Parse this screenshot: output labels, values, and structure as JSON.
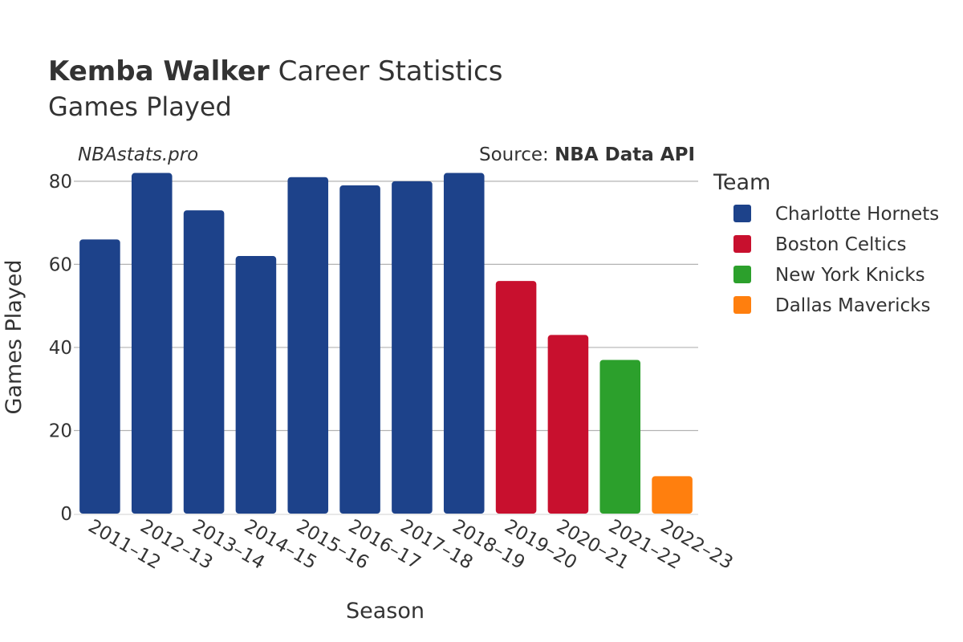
{
  "header": {
    "player_name": "Kemba Walker",
    "title_suffix": "Career Statistics",
    "subtitle": "Games Played"
  },
  "credit": {
    "site": "NBAstats.pro",
    "source_prefix": "Source: ",
    "source_name": "NBA Data API"
  },
  "chart_data": {
    "type": "bar",
    "title": "Kemba Walker Career Statistics",
    "subtitle": "Games Played",
    "xlabel": "Season",
    "ylabel": "Games Played",
    "ylim": [
      0,
      85
    ],
    "yticks": [
      0,
      20,
      40,
      60,
      80
    ],
    "grid": true,
    "legend_title": "Team",
    "legend_position": "right",
    "categories": [
      "2011–12",
      "2012–13",
      "2013–14",
      "2014–15",
      "2015–16",
      "2016–17",
      "2017–18",
      "2018–19",
      "2019–20",
      "2020–21",
      "2021–22",
      "2022–23"
    ],
    "values": [
      66,
      82,
      73,
      62,
      81,
      79,
      80,
      82,
      56,
      43,
      37,
      9
    ],
    "teams": [
      "Charlotte Hornets",
      "Charlotte Hornets",
      "Charlotte Hornets",
      "Charlotte Hornets",
      "Charlotte Hornets",
      "Charlotte Hornets",
      "Charlotte Hornets",
      "Charlotte Hornets",
      "Boston Celtics",
      "Boston Celtics",
      "New York Knicks",
      "Dallas Mavericks"
    ],
    "series": [
      {
        "name": "Charlotte Hornets",
        "color": "#1d428a"
      },
      {
        "name": "Boston Celtics",
        "color": "#c8102e"
      },
      {
        "name": "New York Knicks",
        "color": "#2ca02c"
      },
      {
        "name": "Dallas Mavericks",
        "color": "#ff7f0e"
      }
    ]
  }
}
